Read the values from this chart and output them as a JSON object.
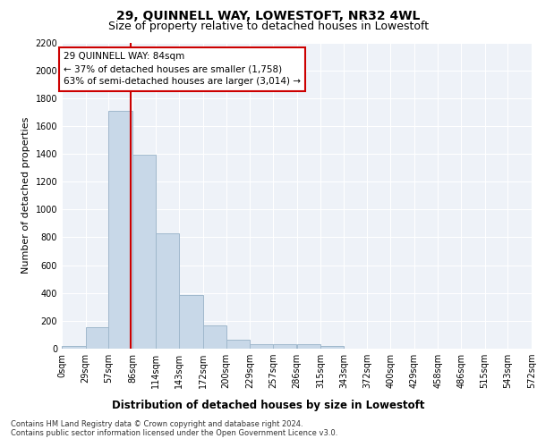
{
  "title": "29, QUINNELL WAY, LOWESTOFT, NR32 4WL",
  "subtitle": "Size of property relative to detached houses in Lowestoft",
  "xlabel": "Distribution of detached houses by size in Lowestoft",
  "ylabel": "Number of detached properties",
  "bar_values": [
    20,
    155,
    1710,
    1395,
    830,
    385,
    165,
    65,
    35,
    30,
    30,
    20,
    0,
    0,
    0,
    0,
    0,
    0,
    0,
    0
  ],
  "bin_edges": [
    0,
    29,
    57,
    86,
    114,
    143,
    172,
    200,
    229,
    257,
    286,
    315,
    343,
    372,
    400,
    429,
    458,
    486,
    515,
    543,
    572
  ],
  "tick_labels": [
    "0sqm",
    "29sqm",
    "57sqm",
    "86sqm",
    "114sqm",
    "143sqm",
    "172sqm",
    "200sqm",
    "229sqm",
    "257sqm",
    "286sqm",
    "315sqm",
    "343sqm",
    "372sqm",
    "400sqm",
    "429sqm",
    "458sqm",
    "486sqm",
    "515sqm",
    "543sqm",
    "572sqm"
  ],
  "bar_color": "#c8d8e8",
  "bar_edge_color": "#a0b8cc",
  "vline_x": 84,
  "vline_color": "#cc0000",
  "annotation_text": "29 QUINNELL WAY: 84sqm\n← 37% of detached houses are smaller (1,758)\n63% of semi-detached houses are larger (3,014) →",
  "annotation_box_color": "#ffffff",
  "annotation_box_edge": "#cc0000",
  "ylim": [
    0,
    2200
  ],
  "yticks": [
    0,
    200,
    400,
    600,
    800,
    1000,
    1200,
    1400,
    1600,
    1800,
    2000,
    2200
  ],
  "bg_color": "#eef2f8",
  "plot_bg_color": "#eef2f8",
  "footer_line1": "Contains HM Land Registry data © Crown copyright and database right 2024.",
  "footer_line2": "Contains public sector information licensed under the Open Government Licence v3.0.",
  "title_fontsize": 10,
  "subtitle_fontsize": 9,
  "xlabel_fontsize": 8.5,
  "ylabel_fontsize": 8,
  "tick_fontsize": 7,
  "annotation_fontsize": 7.5,
  "footer_fontsize": 6
}
